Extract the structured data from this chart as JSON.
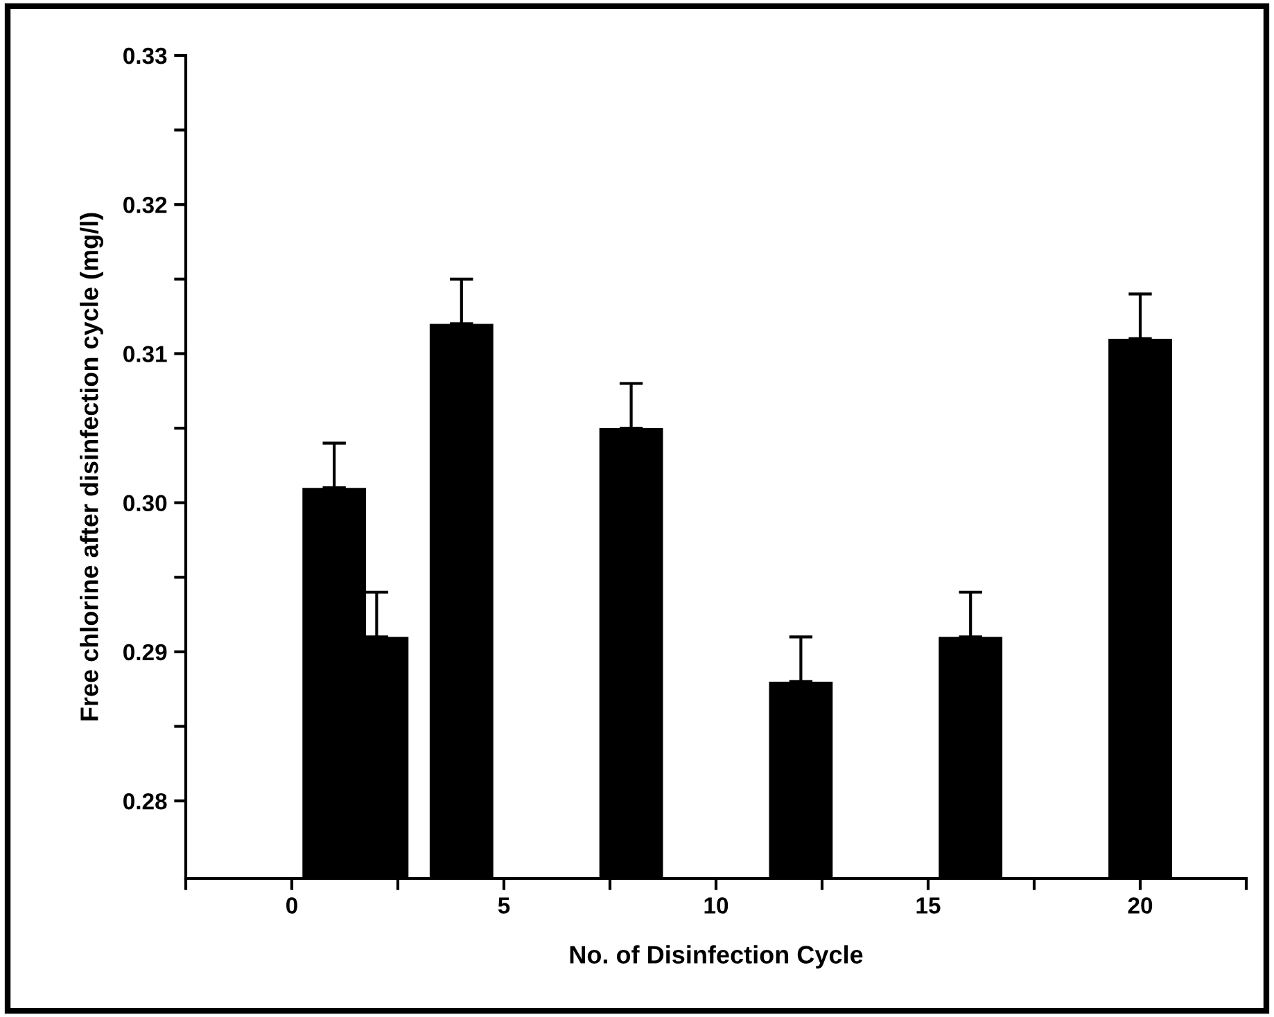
{
  "chart_data": {
    "type": "bar",
    "xlabel": "No. of Disinfection Cycle",
    "ylabel": "Free chlorine after disinfection cycle (mg/l)",
    "x": [
      1,
      2,
      4,
      8,
      12,
      16,
      20
    ],
    "values": [
      0.301,
      0.291,
      0.312,
      0.305,
      0.288,
      0.291,
      0.311
    ],
    "errors": [
      0.003,
      0.003,
      0.003,
      0.003,
      0.003,
      0.003,
      0.003
    ],
    "color": "#000000",
    "xlim": [
      -2.5,
      22.5
    ],
    "xticks": [
      {
        "value": -2.5,
        "label": null
      },
      0,
      {
        "value": 2.5,
        "label": null
      },
      5,
      {
        "value": 7.5,
        "label": null
      },
      10,
      {
        "value": 12.5,
        "label": null
      },
      15,
      {
        "value": 17.5,
        "label": null
      },
      20,
      {
        "value": 22.5,
        "label": null
      }
    ],
    "ylim": [
      0.2748,
      0.33
    ],
    "yticks": [
      0.28,
      {
        "value": 0.285,
        "label": null
      },
      {
        "value": 0.29,
        "label": "0.29"
      },
      {
        "value": 0.295,
        "label": null
      },
      {
        "value": 0.3,
        "label": "0.30"
      },
      {
        "value": 0.305,
        "label": null
      },
      0.31,
      {
        "value": 0.315,
        "label": null
      },
      0.32,
      {
        "value": 0.325,
        "label": null
      },
      0.33
    ],
    "grid": false,
    "legend": false
  }
}
